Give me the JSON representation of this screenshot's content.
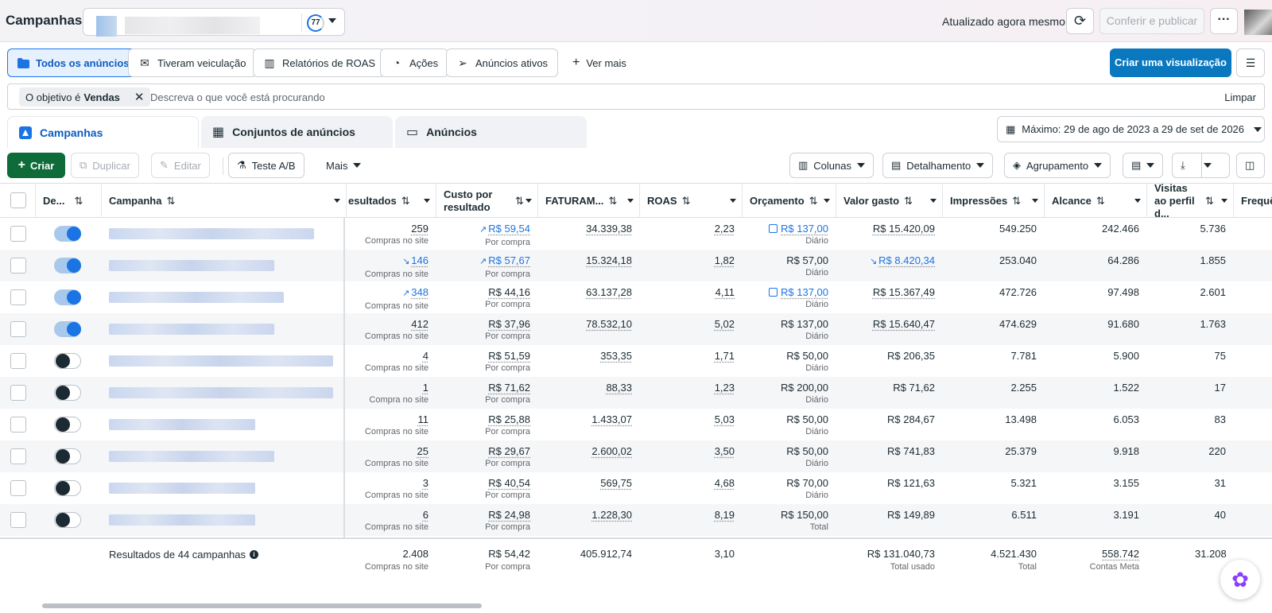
{
  "header": {
    "title": "Campanhas",
    "score": "77",
    "updated": "Atualizado agora mesmo",
    "publish_label": "Conferir e publicar",
    "more_label": "···"
  },
  "toolbar": {
    "tabs": [
      {
        "label": "Todos os anúncios",
        "icon": "folder-icon"
      },
      {
        "label": "Tiveram veiculação",
        "icon": "envelope-icon"
      },
      {
        "label": "Relatórios de ROAS",
        "icon": "bar-chart-icon"
      },
      {
        "label": "Ações",
        "icon": "gauge-icon"
      },
      {
        "label": "Anúncios ativos",
        "icon": "send-icon"
      }
    ],
    "see_more": "Ver mais",
    "create_view": "Criar uma visualização"
  },
  "search": {
    "chip_prefix": "O objetivo é",
    "chip_value": "Vendas",
    "placeholder": "Descreva o que você está procurando",
    "clear": "Limpar"
  },
  "levels": {
    "campaigns": "Campanhas",
    "adsets": "Conjuntos de anúncios",
    "ads": "Anúncios",
    "date_range": "Máximo: 29 de ago de 2023 a 29 de set de 2026"
  },
  "actions": {
    "create": "Criar",
    "duplicate": "Duplicar",
    "edit": "Editar",
    "ab_test": "Teste A/B",
    "more": "Mais",
    "columns": "Colunas",
    "breakdown": "Detalhamento",
    "grouping": "Agrupamento"
  },
  "table": {
    "headers": {
      "delivery": "De...",
      "campaign": "Campanha",
      "results": "esultados",
      "cost_per_result": "Custo por resultado",
      "revenue": "FATURAM...",
      "roas": "ROAS",
      "budget": "Orçamento",
      "amount_spent": "Valor gasto",
      "impressions": "Impressões",
      "reach": "Alcance",
      "profile_visits": "Visitas ao perfil d...",
      "frequency": "Frequê"
    },
    "rows": [
      {
        "on": true,
        "results": "259",
        "results_sub": "Compras no site",
        "cpr": "R$ 59,54",
        "cpr_sub": "Por compra",
        "revenue": "34.339,38",
        "roas": "2,23",
        "budget": "R$ 137,00",
        "budget_sub": "Diário",
        "spent": "R$ 15.420,09",
        "impressions": "549.250",
        "reach": "242.466",
        "visits": "5.736"
      },
      {
        "on": true,
        "results": "146",
        "results_sub": "Compras no site",
        "cpr": "R$ 57,67",
        "cpr_sub": "Por compra",
        "revenue": "15.324,18",
        "roas": "1,82",
        "budget": "R$ 57,00",
        "budget_sub": "Diário",
        "spent": "R$ 8.420,34",
        "impressions": "253.040",
        "reach": "64.286",
        "visits": "1.855"
      },
      {
        "on": true,
        "results": "348",
        "results_sub": "Compras no site",
        "cpr": "R$ 44,16",
        "cpr_sub": "Por compra",
        "revenue": "63.137,28",
        "roas": "4,11",
        "budget": "R$ 137,00",
        "budget_sub": "Diário",
        "spent": "R$ 15.367,49",
        "impressions": "472.726",
        "reach": "97.498",
        "visits": "2.601"
      },
      {
        "on": true,
        "results": "412",
        "results_sub": "Compras no site",
        "cpr": "R$ 37,96",
        "cpr_sub": "Por compra",
        "revenue": "78.532,10",
        "roas": "5,02",
        "budget": "R$ 137,00",
        "budget_sub": "Diário",
        "spent": "R$ 15.640,47",
        "impressions": "474.629",
        "reach": "91.680",
        "visits": "1.763"
      },
      {
        "on": false,
        "results": "4",
        "results_sub": "Compras no site",
        "cpr": "R$ 51,59",
        "cpr_sub": "Por compra",
        "revenue": "353,35",
        "roas": "1,71",
        "budget": "R$ 50,00",
        "budget_sub": "Diário",
        "spent": "R$ 206,35",
        "impressions": "7.781",
        "reach": "5.900",
        "visits": "75"
      },
      {
        "on": false,
        "results": "1",
        "results_sub": "Compra no site",
        "cpr": "R$ 71,62",
        "cpr_sub": "Por compra",
        "revenue": "88,33",
        "roas": "1,23",
        "budget": "R$ 200,00",
        "budget_sub": "Diário",
        "spent": "R$ 71,62",
        "impressions": "2.255",
        "reach": "1.522",
        "visits": "17"
      },
      {
        "on": false,
        "results": "11",
        "results_sub": "Compras no site",
        "cpr": "R$ 25,88",
        "cpr_sub": "Por compra",
        "revenue": "1.433,07",
        "roas": "5,03",
        "budget": "R$ 50,00",
        "budget_sub": "Diário",
        "spent": "R$ 284,67",
        "impressions": "13.498",
        "reach": "6.053",
        "visits": "83"
      },
      {
        "on": false,
        "results": "25",
        "results_sub": "Compras no site",
        "cpr": "R$ 29,67",
        "cpr_sub": "Por compra",
        "revenue": "2.600,02",
        "roas": "3,50",
        "budget": "R$ 50,00",
        "budget_sub": "Diário",
        "spent": "R$ 741,83",
        "impressions": "25.379",
        "reach": "9.918",
        "visits": "220"
      },
      {
        "on": false,
        "results": "3",
        "results_sub": "Compras no site",
        "cpr": "R$ 40,54",
        "cpr_sub": "Por compra",
        "revenue": "569,75",
        "roas": "4,68",
        "budget": "R$ 70,00",
        "budget_sub": "Diário",
        "spent": "R$ 121,63",
        "impressions": "5.321",
        "reach": "3.155",
        "visits": "31"
      },
      {
        "on": false,
        "results": "6",
        "results_sub": "Compras no site",
        "cpr": "R$ 24,98",
        "cpr_sub": "Por compra",
        "revenue": "1.228,30",
        "roas": "8,19",
        "budget": "R$ 150,00",
        "budget_sub": "Total",
        "spent": "R$ 149,89",
        "impressions": "6.511",
        "reach": "3.191",
        "visits": "40"
      }
    ],
    "footer": {
      "label": "Resultados de 44 campanhas",
      "results": "2.408",
      "results_sub": "Compras no site",
      "cpr": "R$ 54,42",
      "cpr_sub": "Por compra",
      "revenue": "405.912,74",
      "roas": "3,10",
      "spent": "R$ 131.040,73",
      "spent_sub": "Total usado",
      "impressions": "4.521.430",
      "impressions_sub": "Total",
      "reach": "558.742",
      "reach_sub": "Contas Meta",
      "visits": "31.208"
    }
  }
}
